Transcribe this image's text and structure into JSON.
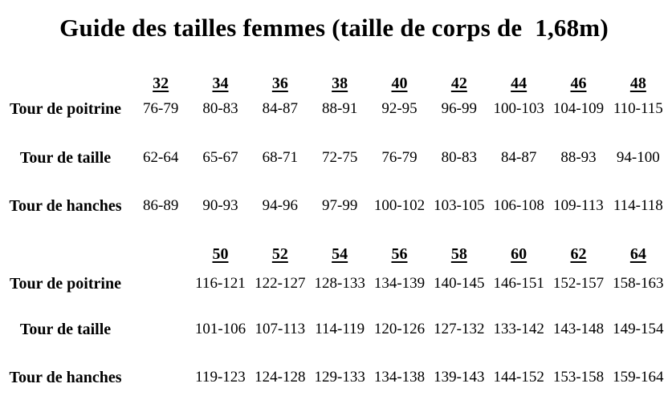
{
  "title": "Guide des tailles femmes (taille de corps de  1,68m)",
  "text_color": "#000000",
  "background_color": "#ffffff",
  "tables": [
    {
      "name": "sizes-32-48",
      "column_offset": 0,
      "sizes": [
        "32",
        "34",
        "36",
        "38",
        "40",
        "42",
        "44",
        "46",
        "48"
      ],
      "rows": [
        {
          "label": "Tour de poitrine",
          "values": [
            "76-79",
            "80-83",
            "84-87",
            "88-91",
            "92-95",
            "96-99",
            "100-103",
            "104-109",
            "110-115"
          ]
        },
        {
          "label": "Tour de taille",
          "values": [
            "62-64",
            "65-67",
            "68-71",
            "72-75",
            "76-79",
            "80-83",
            "84-87",
            "88-93",
            "94-100"
          ]
        },
        {
          "label": "Tour de hanches",
          "values": [
            "86-89",
            "90-93",
            "94-96",
            "97-99",
            "100-102",
            "103-105",
            "106-108",
            "109-113",
            "114-118"
          ]
        }
      ]
    },
    {
      "name": "sizes-50-64",
      "column_offset": 1,
      "sizes": [
        "50",
        "52",
        "54",
        "56",
        "58",
        "60",
        "62",
        "64"
      ],
      "rows": [
        {
          "label": "Tour de poitrine",
          "values": [
            "116-121",
            "122-127",
            "128-133",
            "134-139",
            "140-145",
            "146-151",
            "152-157",
            "158-163"
          ]
        },
        {
          "label": "Tour de taille",
          "values": [
            "101-106",
            "107-113",
            "114-119",
            "120-126",
            "127-132",
            "133-142",
            "143-148",
            "149-154"
          ]
        },
        {
          "label": "Tour de hanches",
          "values": [
            "119-123",
            "124-128",
            "129-133",
            "134-138",
            "139-143",
            "144-152",
            "153-158",
            "159-164"
          ]
        }
      ]
    }
  ]
}
